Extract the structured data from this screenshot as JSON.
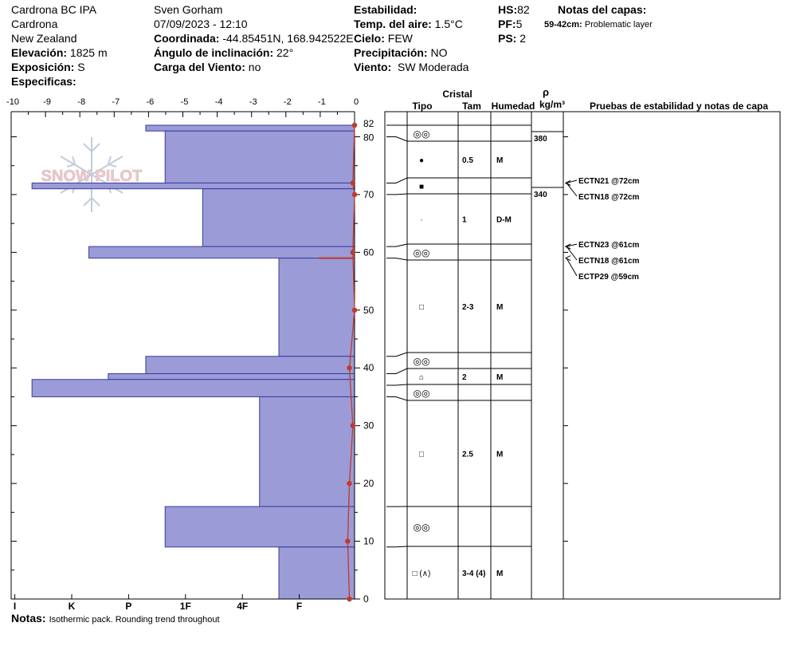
{
  "header": {
    "site": "Cardrona BC IPA",
    "area": "Cardrona",
    "country": "New Zealand",
    "elevation_label": "Elevación:",
    "elevation_value": "1825 m",
    "aspect_label": "Exposición:",
    "aspect_value": "S",
    "specifics_label": "Especificas:",
    "observer": "Sven Gorham",
    "datetime": "07/09/2023 - 12:10",
    "coord_label": "Coordinada:",
    "coord_value": "-44.85451N, 168.942522E",
    "slope_label": "Ángulo de inclinación:",
    "slope_value": "22°",
    "windload_label": "Carga del Viento:",
    "windload_value": "no",
    "stability_label": "Estabilidad:",
    "airtemp_label": "Temp. del aire:",
    "airtemp_value": "1.5°C",
    "sky_label": "Cielo:",
    "sky_value": "FEW",
    "precip_label": "Precipitación:",
    "precip_value": "NO",
    "wind_label": "Viento:",
    "wind_value": "SW Moderada",
    "hs_label": "HS:",
    "hs_value": "82",
    "pf_label": "PF:",
    "pf_value": "5",
    "ps_label": "PS:",
    "ps_value": "2",
    "layer_notes_label": "Notas del capas:",
    "layer_note_range": "59-42cm:",
    "layer_note_text": "Problematic layer"
  },
  "logo_text": "SNOW PILOT",
  "notes": {
    "label": "Notas:",
    "text": "Isothermic pack. Rounding trend throughout"
  },
  "colors": {
    "hardness_fill": "#9b9bd7",
    "hardness_stroke": "#3a3aa0",
    "temp_line": "#c0392b",
    "logo": "#d9a3a8"
  },
  "chart_data": {
    "type": "snow_profile",
    "temp_axis": {
      "range": [
        -10,
        0
      ],
      "ticks": [
        "-10",
        "-9",
        "-8",
        "-7",
        "-6",
        "-5",
        "-4",
        "-3",
        "-2",
        "-1",
        "0"
      ]
    },
    "height_axis": {
      "range": [
        0,
        82
      ],
      "ticks": [
        "0",
        "10",
        "20",
        "30",
        "40",
        "50",
        "60",
        "70",
        "80",
        "82"
      ],
      "tick_values": [
        0,
        10,
        20,
        30,
        40,
        50,
        60,
        70,
        80,
        82
      ]
    },
    "hardness_axis": {
      "ticks": [
        "I",
        "K",
        "P",
        "1F",
        "4F",
        "F"
      ]
    },
    "hardness_layers": [
      {
        "bottom": 81,
        "top": 82,
        "hardness": "P-"
      },
      {
        "bottom": 72,
        "top": 81,
        "hardness": "1F+"
      },
      {
        "bottom": 71,
        "top": 72,
        "hardness": "I-"
      },
      {
        "bottom": 61,
        "top": 71,
        "hardness": "1F-"
      },
      {
        "bottom": 59,
        "top": 61,
        "hardness": "K-"
      },
      {
        "bottom": 42,
        "top": 59,
        "hardness": "F+"
      },
      {
        "bottom": 39,
        "top": 42,
        "hardness": "P-"
      },
      {
        "bottom": 38,
        "top": 39,
        "hardness": "P+"
      },
      {
        "bottom": 35,
        "top": 38,
        "hardness": "I-"
      },
      {
        "bottom": 16,
        "top": 35,
        "hardness": "4F-"
      },
      {
        "bottom": 9,
        "top": 16,
        "hardness": "1F+"
      },
      {
        "bottom": 0,
        "top": 9,
        "hardness": "F+"
      }
    ],
    "temperature_profile": [
      {
        "height": 82,
        "temp": 0.0
      },
      {
        "height": 72,
        "temp": -0.05
      },
      {
        "height": 70,
        "temp": 0.0
      },
      {
        "height": 60,
        "temp": -0.05
      },
      {
        "height": 50,
        "temp": 0.0
      },
      {
        "height": 40,
        "temp": -0.15
      },
      {
        "height": 30,
        "temp": -0.05
      },
      {
        "height": 20,
        "temp": -0.15
      },
      {
        "height": 10,
        "temp": -0.2
      },
      {
        "height": 0,
        "temp": -0.15
      }
    ],
    "grain_column_headers": {
      "crystal": "Cristal",
      "type": "Tipo",
      "size": "Tam",
      "moisture": "Humedad",
      "rho": "ρ",
      "density_unit": "kg/m³",
      "tests": "Pruebas de estabilidad y notas de capa"
    },
    "grain_layers": [
      {
        "bottom": 80,
        "top": 82,
        "grain": "◎◎",
        "size": "",
        "moisture": ""
      },
      {
        "bottom": 72,
        "top": 80,
        "grain": "●",
        "size": "0.5",
        "moisture": "M"
      },
      {
        "bottom": 70,
        "top": 72,
        "grain": "■",
        "size": "",
        "moisture": ""
      },
      {
        "bottom": 61,
        "top": 70,
        "grain": "·",
        "size": "1",
        "moisture": "D-M"
      },
      {
        "bottom": 59,
        "top": 61,
        "grain": "◎◎",
        "size": "",
        "moisture": ""
      },
      {
        "bottom": 42,
        "top": 59,
        "grain": "□",
        "size": "2-3",
        "moisture": "M"
      },
      {
        "bottom": 39,
        "top": 42,
        "grain": "◎◎",
        "size": "",
        "moisture": ""
      },
      {
        "bottom": 37,
        "top": 39,
        "grain": "⌂",
        "size": "2",
        "moisture": "M"
      },
      {
        "bottom": 35,
        "top": 37,
        "grain": "◎◎",
        "size": "",
        "moisture": ""
      },
      {
        "bottom": 16,
        "top": 35,
        "grain": "□",
        "size": "2.5",
        "moisture": "M"
      },
      {
        "bottom": 9,
        "top": 16,
        "grain": "◎◎",
        "size": "",
        "moisture": ""
      },
      {
        "bottom": 0,
        "top": 9,
        "grain": "□ (∧)",
        "size": "3-4 (4)",
        "moisture": "M"
      }
    ],
    "density": [
      {
        "bottom": 72,
        "top": 80,
        "value": "380"
      },
      {
        "bottom": 61,
        "top": 70,
        "value": "340"
      }
    ],
    "stability_tests": [
      {
        "label": "ECTN21 @72cm",
        "height": 72
      },
      {
        "label": "ECTN18 @72cm",
        "height": 72
      },
      {
        "label": "ECTN23 @61cm",
        "height": 61
      },
      {
        "label": "ECTN18 @61cm",
        "height": 61
      },
      {
        "label": "ECTP29 @59cm",
        "height": 59
      }
    ]
  }
}
